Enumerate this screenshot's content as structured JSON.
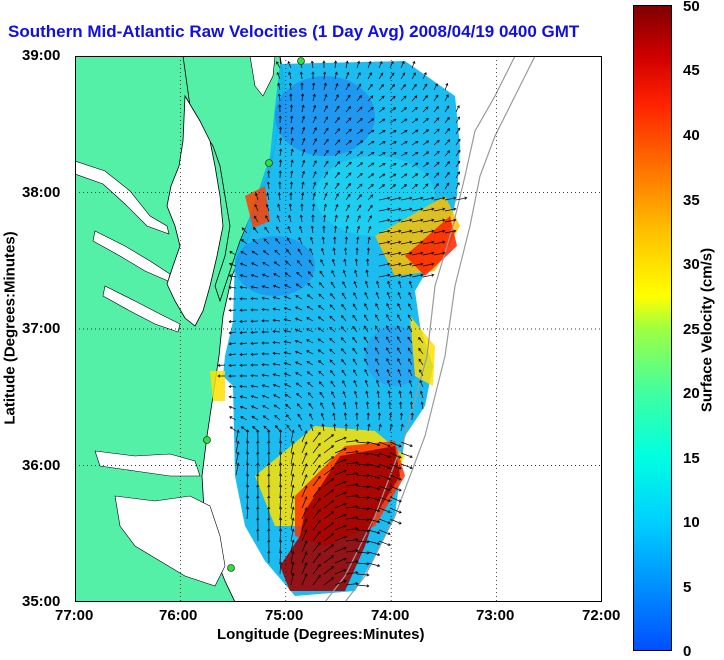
{
  "title": "Southern Mid-Atlantic Raw Velocities (1 Day Avg) 2008/04/19 0400 GMT",
  "x_axis": {
    "label": "Longitude (Degrees:Minutes)",
    "ticks": [
      "77:00",
      "76:00",
      "75:00",
      "74:00",
      "73:00",
      "72:00"
    ]
  },
  "y_axis": {
    "label": "Latitude (Degrees:Minutes)",
    "ticks": [
      "39:00",
      "38:00",
      "37:00",
      "36:00",
      "35:00"
    ]
  },
  "colorbar": {
    "label": "Surface Velocity (cm/s)",
    "ticks": [
      "50",
      "45",
      "40",
      "35",
      "30",
      "25",
      "20",
      "15",
      "10",
      "5",
      "0"
    ],
    "range": [
      0,
      50
    ]
  },
  "map": {
    "lon_range": [
      -77,
      -72
    ],
    "lat_range": [
      35,
      39
    ],
    "land_color": "#55f0a8",
    "coast_color": "#000000",
    "isobath_color": "#9a9a9a",
    "grid": true
  }
}
